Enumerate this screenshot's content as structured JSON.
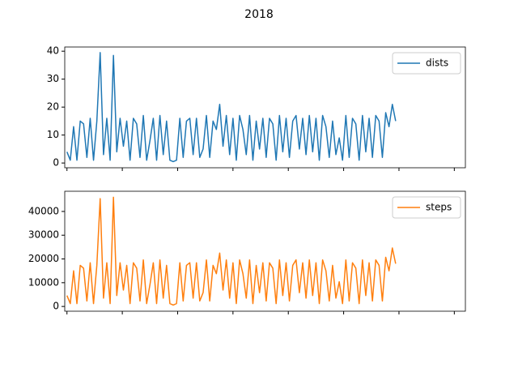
{
  "title": "2018",
  "chart_data": [
    {
      "type": "line",
      "x": [
        0,
        3,
        6,
        9,
        12,
        15,
        18,
        21,
        24,
        27,
        30,
        33,
        36,
        39,
        42,
        45,
        48,
        51,
        54,
        57,
        60,
        63,
        66,
        69,
        72,
        75,
        78,
        81,
        84,
        87,
        90,
        93,
        96,
        99,
        102,
        105,
        108,
        111,
        114,
        117,
        120,
        123,
        126,
        129,
        132,
        135,
        138,
        141,
        144,
        147,
        150,
        153,
        156,
        159,
        162,
        165,
        168,
        171,
        174,
        177,
        180,
        183,
        186,
        189,
        192,
        195,
        198,
        201,
        204,
        207,
        210,
        213,
        216,
        219,
        222,
        225,
        228,
        231,
        234,
        237,
        240,
        243,
        246,
        249,
        252,
        255,
        258,
        261,
        264,
        267,
        270,
        273,
        276,
        279,
        282,
        285,
        288,
        291,
        294,
        297
      ],
      "series": [
        {
          "name": "dists",
          "color": "#1f77b4",
          "values": [
            4,
            1,
            13,
            1,
            15,
            14,
            2,
            16,
            1,
            15,
            39.5,
            3,
            16,
            1,
            38.5,
            4,
            16,
            6,
            15,
            1,
            16,
            14,
            2,
            17,
            1,
            8,
            16,
            1,
            17,
            3,
            15,
            1,
            0.5,
            1,
            16,
            2,
            15,
            16,
            3,
            16,
            2,
            5,
            17,
            2,
            15,
            12,
            21,
            6,
            17,
            3,
            16,
            1,
            17,
            12,
            3,
            17,
            1,
            15,
            5,
            16,
            2,
            16,
            14,
            1,
            17,
            4,
            16,
            2,
            15,
            17,
            5,
            16,
            3,
            17,
            4,
            16,
            1,
            17,
            13,
            2,
            15,
            3,
            9,
            1,
            17,
            2,
            16,
            14,
            1,
            17,
            4,
            16,
            2,
            17,
            15,
            2,
            18,
            13,
            21,
            15
          ]
        }
      ],
      "xlim": [
        -2,
        360
      ],
      "xticks": [
        0,
        50,
        100,
        150,
        200,
        250,
        300,
        350
      ],
      "ylim": [
        -1.7,
        41.5
      ],
      "yticks": [
        0,
        10,
        20,
        30,
        40
      ],
      "legend": "upper right"
    },
    {
      "type": "line",
      "x": [
        0,
        3,
        6,
        9,
        12,
        15,
        18,
        21,
        24,
        27,
        30,
        33,
        36,
        39,
        42,
        45,
        48,
        51,
        54,
        57,
        60,
        63,
        66,
        69,
        72,
        75,
        78,
        81,
        84,
        87,
        90,
        93,
        96,
        99,
        102,
        105,
        108,
        111,
        114,
        117,
        120,
        123,
        126,
        129,
        132,
        135,
        138,
        141,
        144,
        147,
        150,
        153,
        156,
        159,
        162,
        165,
        168,
        171,
        174,
        177,
        180,
        183,
        186,
        189,
        192,
        195,
        198,
        201,
        204,
        207,
        210,
        213,
        216,
        219,
        222,
        225,
        228,
        231,
        234,
        237,
        240,
        243,
        246,
        249,
        252,
        255,
        258,
        261,
        264,
        267,
        270,
        273,
        276,
        279,
        282,
        285,
        288,
        291,
        294,
        297
      ],
      "series": [
        {
          "name": "steps",
          "color": "#ff7f0e",
          "values": [
            4600,
            1200,
            15000,
            1200,
            17300,
            16100,
            2300,
            18400,
            1200,
            17300,
            45400,
            3500,
            18400,
            1200,
            46000,
            4600,
            18400,
            6900,
            17300,
            1200,
            18400,
            16100,
            2300,
            19600,
            1200,
            9200,
            18400,
            1200,
            19600,
            3500,
            17300,
            1200,
            600,
            1200,
            18400,
            2300,
            17300,
            18400,
            3500,
            18400,
            2300,
            5800,
            19600,
            2300,
            17300,
            13800,
            22500,
            6900,
            19600,
            3500,
            18400,
            1200,
            19600,
            13800,
            3500,
            19600,
            1200,
            17300,
            5800,
            18400,
            2300,
            18400,
            16100,
            1200,
            19600,
            4600,
            18400,
            2300,
            17300,
            19600,
            5800,
            18400,
            3500,
            19600,
            4600,
            18400,
            1200,
            19600,
            15000,
            2300,
            17300,
            3500,
            10400,
            1200,
            19600,
            2300,
            18400,
            16100,
            1200,
            19600,
            4600,
            18400,
            2300,
            19600,
            17300,
            2300,
            20700,
            15000,
            24600,
            18000
          ]
        }
      ],
      "xlim": [
        -2,
        360
      ],
      "xticks": [
        0,
        50,
        100,
        150,
        200,
        250,
        300,
        350
      ],
      "ylim": [
        -2000,
        48500
      ],
      "yticks": [
        0,
        10000,
        20000,
        30000,
        40000
      ],
      "legend": "upper right"
    }
  ]
}
